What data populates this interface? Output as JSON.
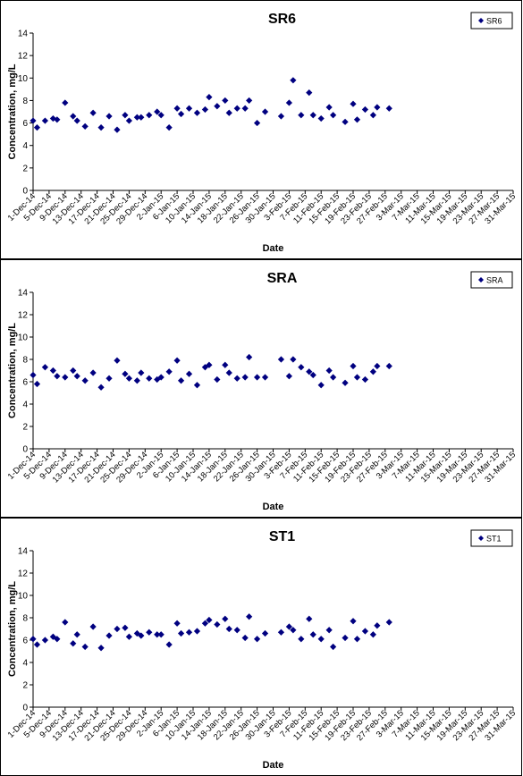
{
  "chart_data": [
    {
      "type": "scatter",
      "title": "SR6",
      "xlabel": "Date",
      "ylabel": "Concentration, mg/L",
      "ylim": [
        0,
        14
      ],
      "yticks": [
        "0",
        "2",
        "4",
        "6",
        "8",
        "10",
        "12",
        "14"
      ],
      "legend_position": "top-right",
      "marker_color": "#000080",
      "xtick_labels": [
        "1-Dec-14",
        "5-Dec-14",
        "9-Dec-14",
        "13-Dec-14",
        "17-Dec-14",
        "21-Dec-14",
        "25-Dec-14",
        "29-Dec-14",
        "2-Jan-15",
        "6-Jan-15",
        "10-Jan-15",
        "14-Jan-15",
        "18-Jan-15",
        "22-Jan-15",
        "26-Jan-15",
        "30-Jan-15",
        "3-Feb-15",
        "7-Feb-15",
        "11-Feb-15",
        "15-Feb-15",
        "19-Feb-15",
        "23-Feb-15",
        "27-Feb-15",
        "3-Mar-15",
        "7-Mar-15",
        "11-Mar-15",
        "15-Mar-15",
        "19-Mar-15",
        "23-Mar-15",
        "27-Mar-15",
        "31-Mar-15"
      ],
      "series": [
        {
          "name": "SR6",
          "points": [
            [
              "1-Dec-14",
              6.2
            ],
            [
              "2-Dec-14",
              5.6
            ],
            [
              "4-Dec-14",
              6.2
            ],
            [
              "6-Dec-14",
              6.4
            ],
            [
              "7-Dec-14",
              6.3
            ],
            [
              "9-Dec-14",
              7.8
            ],
            [
              "11-Dec-14",
              6.6
            ],
            [
              "12-Dec-14",
              6.2
            ],
            [
              "14-Dec-14",
              5.7
            ],
            [
              "16-Dec-14",
              6.9
            ],
            [
              "18-Dec-14",
              5.6
            ],
            [
              "20-Dec-14",
              6.6
            ],
            [
              "22-Dec-14",
              5.4
            ],
            [
              "24-Dec-14",
              6.7
            ],
            [
              "25-Dec-14",
              6.2
            ],
            [
              "27-Dec-14",
              6.5
            ],
            [
              "28-Dec-14",
              6.5
            ],
            [
              "30-Dec-14",
              6.7
            ],
            [
              "1-Jan-15",
              7.0
            ],
            [
              "2-Jan-15",
              6.7
            ],
            [
              "4-Jan-15",
              5.6
            ],
            [
              "6-Jan-15",
              7.3
            ],
            [
              "7-Jan-15",
              6.8
            ],
            [
              "9-Jan-15",
              7.3
            ],
            [
              "11-Jan-15",
              6.9
            ],
            [
              "13-Jan-15",
              7.2
            ],
            [
              "14-Jan-15",
              8.3
            ],
            [
              "16-Jan-15",
              7.5
            ],
            [
              "18-Jan-15",
              8.0
            ],
            [
              "19-Jan-15",
              6.9
            ],
            [
              "21-Jan-15",
              7.3
            ],
            [
              "23-Jan-15",
              7.3
            ],
            [
              "24-Jan-15",
              8.0
            ],
            [
              "26-Jan-15",
              6.0
            ],
            [
              "28-Jan-15",
              7.0
            ],
            [
              "1-Feb-15",
              6.6
            ],
            [
              "3-Feb-15",
              7.8
            ],
            [
              "4-Feb-15",
              9.8
            ],
            [
              "6-Feb-15",
              6.7
            ],
            [
              "8-Feb-15",
              8.7
            ],
            [
              "9-Feb-15",
              6.7
            ],
            [
              "11-Feb-15",
              6.4
            ],
            [
              "13-Feb-15",
              7.4
            ],
            [
              "14-Feb-15",
              6.7
            ],
            [
              "17-Feb-15",
              6.1
            ],
            [
              "19-Feb-15",
              7.7
            ],
            [
              "20-Feb-15",
              6.3
            ],
            [
              "22-Feb-15",
              7.2
            ],
            [
              "24-Feb-15",
              6.7
            ],
            [
              "25-Feb-15",
              7.4
            ],
            [
              "28-Feb-15",
              7.3
            ]
          ]
        }
      ]
    },
    {
      "type": "scatter",
      "title": "SRA",
      "xlabel": "Date",
      "ylabel": "Concentration, mg/L",
      "ylim": [
        0,
        14
      ],
      "yticks": [
        "0",
        "2",
        "4",
        "6",
        "8",
        "10",
        "12",
        "14"
      ],
      "legend_position": "top-right",
      "marker_color": "#000080",
      "xtick_labels": [
        "1-Dec-14",
        "5-Dec-14",
        "9-Dec-14",
        "13-Dec-14",
        "17-Dec-14",
        "21-Dec-14",
        "25-Dec-14",
        "29-Dec-14",
        "2-Jan-15",
        "6-Jan-15",
        "10-Jan-15",
        "14-Jan-15",
        "18-Jan-15",
        "22-Jan-15",
        "26-Jan-15",
        "30-Jan-15",
        "3-Feb-15",
        "7-Feb-15",
        "11-Feb-15",
        "15-Feb-15",
        "19-Feb-15",
        "23-Feb-15",
        "27-Feb-15",
        "3-Mar-15",
        "7-Mar-15",
        "11-Mar-15",
        "15-Mar-15",
        "19-Mar-15",
        "23-Mar-15",
        "27-Mar-15",
        "31-Mar-15"
      ],
      "series": [
        {
          "name": "SRA",
          "points": [
            [
              "1-Dec-14",
              6.6
            ],
            [
              "2-Dec-14",
              5.8
            ],
            [
              "4-Dec-14",
              7.3
            ],
            [
              "6-Dec-14",
              7.0
            ],
            [
              "7-Dec-14",
              6.5
            ],
            [
              "9-Dec-14",
              6.4
            ],
            [
              "11-Dec-14",
              7.0
            ],
            [
              "12-Dec-14",
              6.5
            ],
            [
              "14-Dec-14",
              6.1
            ],
            [
              "16-Dec-14",
              6.8
            ],
            [
              "18-Dec-14",
              5.5
            ],
            [
              "20-Dec-14",
              6.3
            ],
            [
              "22-Dec-14",
              7.9
            ],
            [
              "24-Dec-14",
              6.7
            ],
            [
              "25-Dec-14",
              6.3
            ],
            [
              "27-Dec-14",
              6.1
            ],
            [
              "28-Dec-14",
              6.8
            ],
            [
              "30-Dec-14",
              6.3
            ],
            [
              "1-Jan-15",
              6.2
            ],
            [
              "2-Jan-15",
              6.4
            ],
            [
              "4-Jan-15",
              6.9
            ],
            [
              "6-Jan-15",
              7.9
            ],
            [
              "7-Jan-15",
              6.1
            ],
            [
              "9-Jan-15",
              6.7
            ],
            [
              "11-Jan-15",
              5.7
            ],
            [
              "13-Jan-15",
              7.3
            ],
            [
              "14-Jan-15",
              7.5
            ],
            [
              "16-Jan-15",
              6.2
            ],
            [
              "18-Jan-15",
              7.5
            ],
            [
              "19-Jan-15",
              6.8
            ],
            [
              "21-Jan-15",
              6.3
            ],
            [
              "23-Jan-15",
              6.4
            ],
            [
              "24-Jan-15",
              8.2
            ],
            [
              "26-Jan-15",
              6.4
            ],
            [
              "28-Jan-15",
              6.4
            ],
            [
              "1-Feb-15",
              8.0
            ],
            [
              "3-Feb-15",
              6.5
            ],
            [
              "4-Feb-15",
              8.0
            ],
            [
              "6-Feb-15",
              7.3
            ],
            [
              "8-Feb-15",
              6.9
            ],
            [
              "9-Feb-15",
              6.6
            ],
            [
              "11-Feb-15",
              5.7
            ],
            [
              "13-Feb-15",
              7.0
            ],
            [
              "14-Feb-15",
              6.4
            ],
            [
              "17-Feb-15",
              5.9
            ],
            [
              "19-Feb-15",
              7.4
            ],
            [
              "20-Feb-15",
              6.4
            ],
            [
              "22-Feb-15",
              6.2
            ],
            [
              "24-Feb-15",
              6.9
            ],
            [
              "25-Feb-15",
              7.4
            ],
            [
              "28-Feb-15",
              7.4
            ]
          ]
        }
      ]
    },
    {
      "type": "scatter",
      "title": "ST1",
      "xlabel": "Date",
      "ylabel": "Concentration, mg/L",
      "ylim": [
        0,
        14
      ],
      "yticks": [
        "0",
        "2",
        "4",
        "6",
        "8",
        "10",
        "12",
        "14"
      ],
      "legend_position": "top-right",
      "marker_color": "#000080",
      "xtick_labels": [
        "1-Dec-14",
        "5-Dec-14",
        "9-Dec-14",
        "13-Dec-14",
        "17-Dec-14",
        "21-Dec-14",
        "25-Dec-14",
        "29-Dec-14",
        "2-Jan-15",
        "6-Jan-15",
        "10-Jan-15",
        "14-Jan-15",
        "18-Jan-15",
        "22-Jan-15",
        "26-Jan-15",
        "30-Jan-15",
        "3-Feb-15",
        "7-Feb-15",
        "11-Feb-15",
        "15-Feb-15",
        "19-Feb-15",
        "23-Feb-15",
        "27-Feb-15",
        "3-Mar-15",
        "7-Mar-15",
        "11-Mar-15",
        "15-Mar-15",
        "19-Mar-15",
        "23-Mar-15",
        "27-Mar-15",
        "31-Mar-15"
      ],
      "series": [
        {
          "name": "ST1",
          "points": [
            [
              "1-Dec-14",
              6.1
            ],
            [
              "2-Dec-14",
              5.6
            ],
            [
              "4-Dec-14",
              6.0
            ],
            [
              "6-Dec-14",
              6.3
            ],
            [
              "7-Dec-14",
              6.1
            ],
            [
              "9-Dec-14",
              7.6
            ],
            [
              "11-Dec-14",
              5.7
            ],
            [
              "12-Dec-14",
              6.5
            ],
            [
              "14-Dec-14",
              5.4
            ],
            [
              "16-Dec-14",
              7.2
            ],
            [
              "18-Dec-14",
              5.3
            ],
            [
              "20-Dec-14",
              6.4
            ],
            [
              "22-Dec-14",
              7.0
            ],
            [
              "24-Dec-14",
              7.1
            ],
            [
              "25-Dec-14",
              6.3
            ],
            [
              "27-Dec-14",
              6.6
            ],
            [
              "28-Dec-14",
              6.4
            ],
            [
              "30-Dec-14",
              6.7
            ],
            [
              "1-Jan-15",
              6.5
            ],
            [
              "2-Jan-15",
              6.5
            ],
            [
              "4-Jan-15",
              5.6
            ],
            [
              "6-Jan-15",
              7.5
            ],
            [
              "7-Jan-15",
              6.6
            ],
            [
              "9-Jan-15",
              6.7
            ],
            [
              "11-Jan-15",
              6.8
            ],
            [
              "13-Jan-15",
              7.5
            ],
            [
              "14-Jan-15",
              7.8
            ],
            [
              "16-Jan-15",
              7.4
            ],
            [
              "18-Jan-15",
              7.9
            ],
            [
              "19-Jan-15",
              7.0
            ],
            [
              "21-Jan-15",
              6.9
            ],
            [
              "23-Jan-15",
              6.2
            ],
            [
              "24-Jan-15",
              8.1
            ],
            [
              "26-Jan-15",
              6.1
            ],
            [
              "28-Jan-15",
              6.6
            ],
            [
              "1-Feb-15",
              6.7
            ],
            [
              "3-Feb-15",
              7.2
            ],
            [
              "4-Feb-15",
              6.9
            ],
            [
              "6-Feb-15",
              6.1
            ],
            [
              "8-Feb-15",
              7.9
            ],
            [
              "9-Feb-15",
              6.5
            ],
            [
              "11-Feb-15",
              6.1
            ],
            [
              "13-Feb-15",
              6.9
            ],
            [
              "14-Feb-15",
              5.4
            ],
            [
              "17-Feb-15",
              6.2
            ],
            [
              "19-Feb-15",
              7.7
            ],
            [
              "20-Feb-15",
              6.1
            ],
            [
              "22-Feb-15",
              6.8
            ],
            [
              "24-Feb-15",
              6.5
            ],
            [
              "25-Feb-15",
              7.3
            ],
            [
              "28-Feb-15",
              7.6
            ]
          ]
        }
      ]
    }
  ]
}
